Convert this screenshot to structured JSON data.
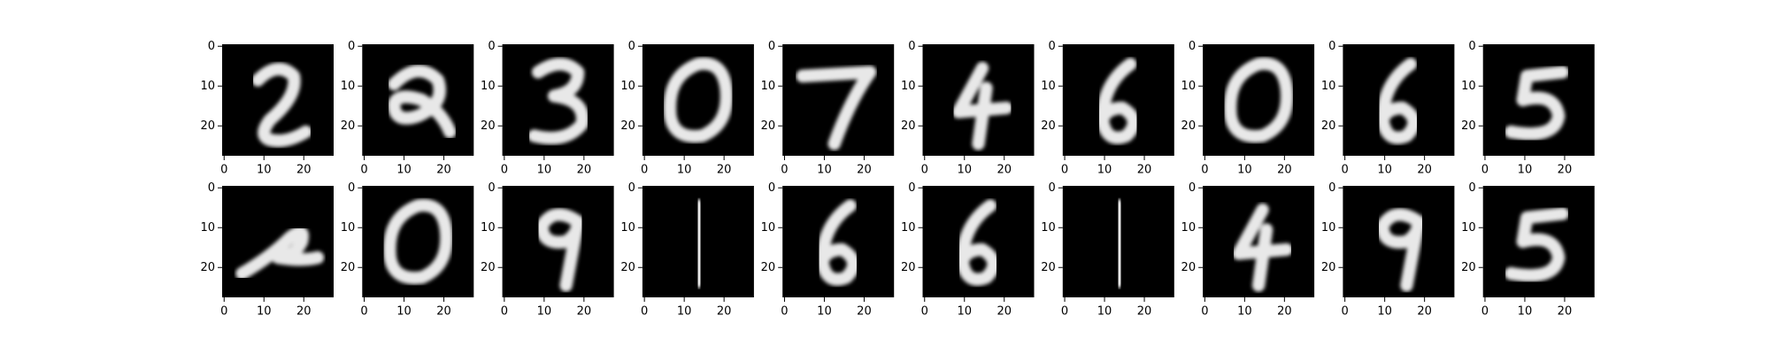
{
  "chart_data": [
    {
      "type": "image",
      "xlim": [
        -0.5,
        27.5
      ],
      "ylim": [
        27.5,
        -0.5
      ],
      "xticks": [
        0,
        10,
        20
      ],
      "yticks": [
        0,
        10,
        20
      ]
    },
    {
      "type": "image",
      "xlim": [
        -0.5,
        27.5
      ],
      "ylim": [
        27.5,
        -0.5
      ],
      "xticks": [
        0,
        10,
        20
      ],
      "yticks": [
        0,
        10,
        20
      ]
    },
    {
      "type": "image",
      "xlim": [
        -0.5,
        27.5
      ],
      "ylim": [
        27.5,
        -0.5
      ],
      "xticks": [
        0,
        10,
        20
      ],
      "yticks": [
        0,
        10,
        20
      ]
    },
    {
      "type": "image",
      "xlim": [
        -0.5,
        27.5
      ],
      "ylim": [
        27.5,
        -0.5
      ],
      "xticks": [
        0,
        10,
        20
      ],
      "yticks": [
        0,
        10,
        20
      ]
    },
    {
      "type": "image",
      "xlim": [
        -0.5,
        27.5
      ],
      "ylim": [
        27.5,
        -0.5
      ],
      "xticks": [
        0,
        10,
        20
      ],
      "yticks": [
        0,
        10,
        20
      ]
    },
    {
      "type": "image",
      "xlim": [
        -0.5,
        27.5
      ],
      "ylim": [
        27.5,
        -0.5
      ],
      "xticks": [
        0,
        10,
        20
      ],
      "yticks": [
        0,
        10,
        20
      ]
    },
    {
      "type": "image",
      "xlim": [
        -0.5,
        27.5
      ],
      "ylim": [
        27.5,
        -0.5
      ],
      "xticks": [
        0,
        10,
        20
      ],
      "yticks": [
        0,
        10,
        20
      ]
    },
    {
      "type": "image",
      "xlim": [
        -0.5,
        27.5
      ],
      "ylim": [
        27.5,
        -0.5
      ],
      "xticks": [
        0,
        10,
        20
      ],
      "yticks": [
        0,
        10,
        20
      ]
    },
    {
      "type": "image",
      "xlim": [
        -0.5,
        27.5
      ],
      "ylim": [
        27.5,
        -0.5
      ],
      "xticks": [
        0,
        10,
        20
      ],
      "yticks": [
        0,
        10,
        20
      ]
    },
    {
      "type": "image",
      "xlim": [
        -0.5,
        27.5
      ],
      "ylim": [
        27.5,
        -0.5
      ],
      "xticks": [
        0,
        10,
        20
      ],
      "yticks": [
        0,
        10,
        20
      ]
    },
    {
      "type": "image",
      "xlim": [
        -0.5,
        27.5
      ],
      "ylim": [
        27.5,
        -0.5
      ],
      "xticks": [
        0,
        10,
        20
      ],
      "yticks": [
        0,
        10,
        20
      ]
    },
    {
      "type": "image",
      "xlim": [
        -0.5,
        27.5
      ],
      "ylim": [
        27.5,
        -0.5
      ],
      "xticks": [
        0,
        10,
        20
      ],
      "yticks": [
        0,
        10,
        20
      ]
    },
    {
      "type": "image",
      "xlim": [
        -0.5,
        27.5
      ],
      "ylim": [
        27.5,
        -0.5
      ],
      "xticks": [
        0,
        10,
        20
      ],
      "yticks": [
        0,
        10,
        20
      ]
    },
    {
      "type": "image",
      "xlim": [
        -0.5,
        27.5
      ],
      "ylim": [
        27.5,
        -0.5
      ],
      "xticks": [
        0,
        10,
        20
      ],
      "yticks": [
        0,
        10,
        20
      ]
    },
    {
      "type": "image",
      "xlim": [
        -0.5,
        27.5
      ],
      "ylim": [
        27.5,
        -0.5
      ],
      "xticks": [
        0,
        10,
        20
      ],
      "yticks": [
        0,
        10,
        20
      ]
    },
    {
      "type": "image",
      "xlim": [
        -0.5,
        27.5
      ],
      "ylim": [
        27.5,
        -0.5
      ],
      "xticks": [
        0,
        10,
        20
      ],
      "yticks": [
        0,
        10,
        20
      ]
    },
    {
      "type": "image",
      "xlim": [
        -0.5,
        27.5
      ],
      "ylim": [
        27.5,
        -0.5
      ],
      "xticks": [
        0,
        10,
        20
      ],
      "yticks": [
        0,
        10,
        20
      ]
    },
    {
      "type": "image",
      "xlim": [
        -0.5,
        27.5
      ],
      "ylim": [
        27.5,
        -0.5
      ],
      "xticks": [
        0,
        10,
        20
      ],
      "yticks": [
        0,
        10,
        20
      ]
    },
    {
      "type": "image",
      "xlim": [
        -0.5,
        27.5
      ],
      "ylim": [
        27.5,
        -0.5
      ],
      "xticks": [
        0,
        10,
        20
      ],
      "yticks": [
        0,
        10,
        20
      ]
    },
    {
      "type": "image",
      "xlim": [
        -0.5,
        27.5
      ],
      "ylim": [
        27.5,
        -0.5
      ],
      "xticks": [
        0,
        10,
        20
      ],
      "yticks": [
        0,
        10,
        20
      ]
    }
  ]
}
